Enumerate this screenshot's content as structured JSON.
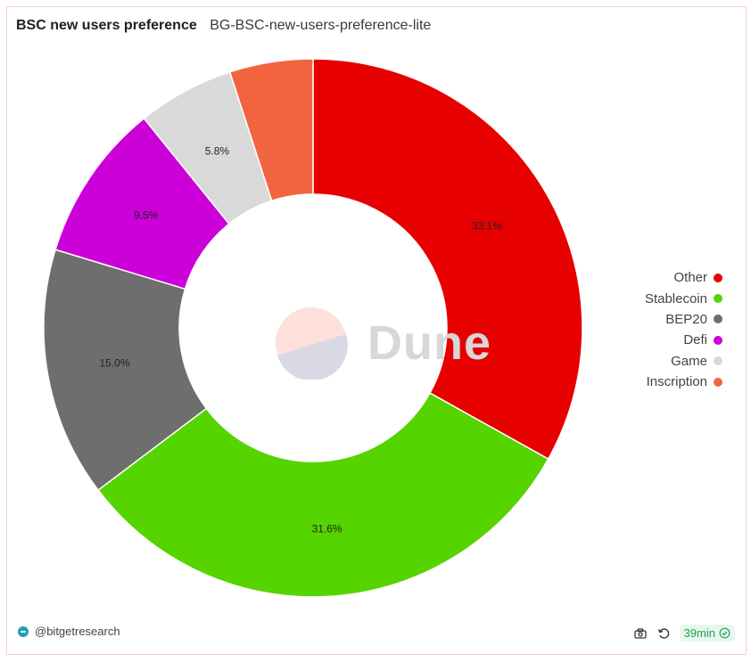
{
  "header": {
    "title": "BSC new users preference",
    "subtitle": "BG-BSC-new-users-preference-lite"
  },
  "chart_data": {
    "type": "pie",
    "donut": true,
    "legend_position": "right",
    "slices": [
      {
        "label": "Other",
        "value": 33.1,
        "display": "33.1%",
        "color": "#e60000"
      },
      {
        "label": "Stablecoin",
        "value": 31.6,
        "display": "31.6%",
        "color": "#55d400"
      },
      {
        "label": "BEP20",
        "value": 15.0,
        "display": "15.0%",
        "color": "#6e6e6e"
      },
      {
        "label": "Defi",
        "value": 9.5,
        "display": "9.5%",
        "color": "#cc00d9"
      },
      {
        "label": "Game",
        "value": 5.8,
        "display": "5.8%",
        "color": "#d9d9d9"
      },
      {
        "label": "Inscription",
        "value": 5.0,
        "display": "",
        "color": "#f26440"
      }
    ]
  },
  "watermark": {
    "text": "Dune"
  },
  "footer": {
    "account": "@bitgetresearch",
    "refresh_age": "39min",
    "icons": [
      "brand-icon",
      "camera-icon",
      "refresh-icon",
      "check-circle-icon"
    ]
  }
}
